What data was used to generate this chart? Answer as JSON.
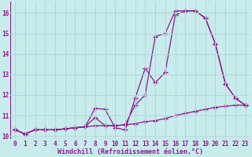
{
  "xlabel": "Windchill (Refroidissement éolien,°C)",
  "background_color": "#c8ecec",
  "grid_color": "#b0d8d8",
  "line_color": "#8b1a8b",
  "xlim": [
    -0.5,
    23.5
  ],
  "ylim": [
    9.85,
    16.55
  ],
  "yticks": [
    10,
    11,
    12,
    13,
    14,
    15,
    16
  ],
  "xticks": [
    0,
    1,
    2,
    3,
    4,
    5,
    6,
    7,
    8,
    9,
    10,
    11,
    12,
    13,
    14,
    15,
    16,
    17,
    18,
    19,
    20,
    21,
    22,
    23
  ],
  "series1_x": [
    0,
    1,
    2,
    3,
    4,
    5,
    6,
    7,
    8,
    9,
    10,
    11,
    12,
    13,
    14,
    15,
    16,
    17,
    18,
    19,
    20,
    21,
    22,
    23
  ],
  "series1_y": [
    10.3,
    10.1,
    10.3,
    10.3,
    10.3,
    10.35,
    10.4,
    10.45,
    11.35,
    11.3,
    10.4,
    10.3,
    11.85,
    13.3,
    12.6,
    13.1,
    15.9,
    16.1,
    16.1,
    15.75,
    14.5,
    12.55,
    11.85,
    11.5
  ],
  "series2_x": [
    0,
    1,
    2,
    3,
    4,
    5,
    6,
    7,
    8,
    9,
    10,
    11,
    12,
    13,
    14,
    15,
    16,
    17,
    18,
    19,
    20,
    21,
    22,
    23
  ],
  "series2_y": [
    10.3,
    10.1,
    10.3,
    10.3,
    10.3,
    10.35,
    10.4,
    10.45,
    10.5,
    10.5,
    10.5,
    10.55,
    10.6,
    10.7,
    10.75,
    10.85,
    11.0,
    11.1,
    11.2,
    11.3,
    11.4,
    11.45,
    11.5,
    11.5
  ],
  "series3_x": [
    0,
    1,
    2,
    3,
    4,
    5,
    6,
    7,
    8,
    9,
    10,
    11,
    12,
    13,
    14,
    15,
    16,
    17,
    18,
    19,
    20,
    21,
    22,
    23
  ],
  "series3_y": [
    10.3,
    10.1,
    10.3,
    10.3,
    10.3,
    10.35,
    10.4,
    10.45,
    10.9,
    10.5,
    10.5,
    10.55,
    11.5,
    12.0,
    14.85,
    15.0,
    16.1,
    16.1,
    16.1,
    15.75,
    14.5,
    12.55,
    11.85,
    11.5
  ],
  "tick_fontsize": 5.5,
  "xlabel_fontsize": 6.0
}
